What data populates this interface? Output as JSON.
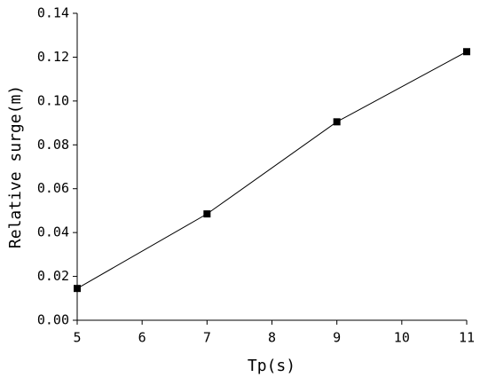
{
  "chart_data": {
    "type": "line",
    "x_label": "Tp(s)",
    "y_label": "Relative surge(m)",
    "x": [
      5,
      7,
      9,
      11
    ],
    "series": [
      {
        "name": "Relative surge",
        "color": "#000000",
        "values": [
          0.0145,
          0.0485,
          0.0905,
          0.1225
        ]
      }
    ],
    "xlim": [
      5,
      11
    ],
    "xticks": [
      5,
      6,
      7,
      8,
      9,
      10,
      11
    ],
    "ylim": [
      0,
      0.14
    ],
    "yticks": [
      {
        "value": 0,
        "label": "0.00"
      },
      0.02,
      0.04,
      0.06,
      0.08,
      {
        "value": 0.1,
        "label": "0.10"
      },
      0.12,
      0.14
    ],
    "marker": "square"
  }
}
